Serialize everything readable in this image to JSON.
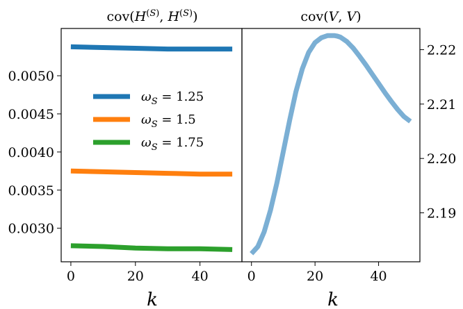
{
  "chart_data": [
    {
      "type": "line",
      "title": "cov(H^(S), H^(S))",
      "xlabel": "k",
      "ylabel": "",
      "xlim": [
        -3,
        53
      ],
      "ylim": [
        0.00256,
        0.00562
      ],
      "xticks": [
        0,
        20,
        40
      ],
      "yticks": [
        0.003,
        0.0035,
        0.004,
        0.0045,
        0.005
      ],
      "ytick_labels": [
        "0.0030",
        "0.0035",
        "0.0040",
        "0.0045",
        "0.0050"
      ],
      "ytick_side": "left",
      "grid": false,
      "legend": "center-left",
      "series": [
        {
          "name": "ω_S = 1.25",
          "color": "#1f77b4",
          "x": [
            0,
            10,
            20,
            30,
            40,
            50
          ],
          "y": [
            0.00538,
            0.00537,
            0.00536,
            0.00535,
            0.00535,
            0.00535
          ]
        },
        {
          "name": "ω_S = 1.5",
          "color": "#ff7f0e",
          "x": [
            0,
            10,
            20,
            30,
            40,
            50
          ],
          "y": [
            0.00375,
            0.00374,
            0.00373,
            0.00372,
            0.00371,
            0.00371
          ]
        },
        {
          "name": "ω_S = 1.75",
          "color": "#2ca02c",
          "x": [
            0,
            10,
            20,
            30,
            40,
            50
          ],
          "y": [
            0.00277,
            0.00276,
            0.00274,
            0.00273,
            0.00273,
            0.00272
          ]
        }
      ]
    },
    {
      "type": "line",
      "title": "cov(V, V)",
      "xlabel": "k",
      "ylabel": "",
      "xlim": [
        -3,
        53
      ],
      "ylim": [
        2.181,
        2.2239
      ],
      "xticks": [
        0,
        20,
        40
      ],
      "yticks": [
        2.19,
        2.2,
        2.21,
        2.22
      ],
      "ytick_labels": [
        "2.19",
        "2.20",
        "2.21",
        "2.22"
      ],
      "ytick_side": "right",
      "grid": false,
      "series": [
        {
          "color": "#7bafd4",
          "x": [
            0,
            2,
            4,
            6,
            8,
            10,
            12,
            14,
            16,
            18,
            20,
            22,
            24,
            26,
            27,
            28,
            30,
            32,
            34,
            36,
            38,
            40,
            42,
            44,
            46,
            48,
            50
          ],
          "y": [
            2.1825,
            2.1838,
            2.1865,
            2.1905,
            2.1955,
            2.2012,
            2.207,
            2.2123,
            2.2165,
            2.2195,
            2.2213,
            2.2222,
            2.2226,
            2.2226,
            2.2225,
            2.2223,
            2.2215,
            2.2203,
            2.2188,
            2.2172,
            2.2155,
            2.2138,
            2.2121,
            2.2105,
            2.209,
            2.2077,
            2.2068
          ]
        }
      ]
    }
  ]
}
